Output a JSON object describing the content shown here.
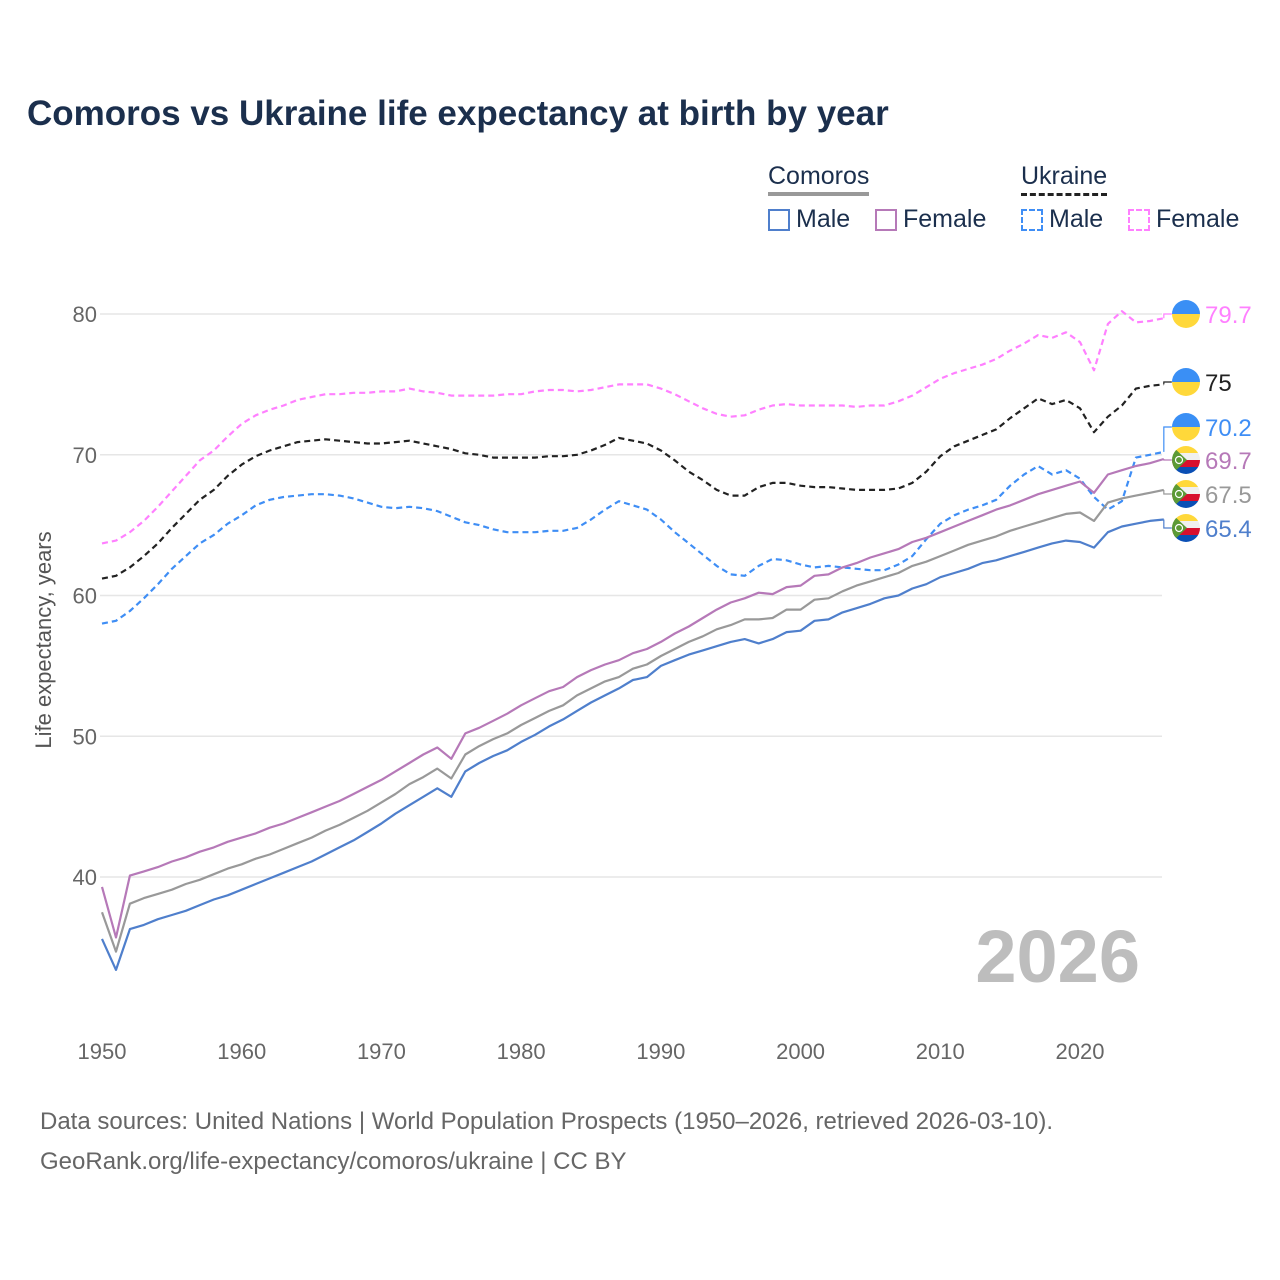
{
  "chart_data": {
    "type": "line",
    "title": "Comoros vs Ukraine life expectancy at birth by year",
    "ylabel": "Life expectancy, years",
    "xlabel": "",
    "xlim": [
      1950,
      2026
    ],
    "ylim": [
      30.5,
      83
    ],
    "x_ticks": [
      "1950",
      "1960",
      "1970",
      "1980",
      "1990",
      "2000",
      "2010",
      "2020"
    ],
    "y_ticks": [
      "40",
      "50",
      "60",
      "70",
      "80"
    ],
    "grid": "horizontal",
    "current_year_label": "2026",
    "legend": {
      "groups": [
        {
          "name": "Comoros",
          "items": [
            "Male",
            "Female"
          ]
        },
        {
          "name": "Ukraine",
          "items": [
            "Male",
            "Female"
          ]
        }
      ],
      "placement": "top-right"
    },
    "x_start": 1950,
    "series": [
      {
        "name": "Ukraine Female",
        "country": "Ukraine",
        "color": "#ff80ff",
        "dashed": true,
        "end_label": "79.7",
        "values": [
          63.7,
          63.9,
          64.5,
          65.3,
          66.3,
          67.4,
          68.5,
          69.6,
          70.3,
          71.3,
          72.2,
          72.8,
          73.2,
          73.5,
          73.9,
          74.1,
          74.3,
          74.3,
          74.4,
          74.4,
          74.5,
          74.5,
          74.7,
          74.5,
          74.4,
          74.2,
          74.2,
          74.2,
          74.2,
          74.3,
          74.3,
          74.5,
          74.6,
          74.6,
          74.5,
          74.6,
          74.8,
          75.0,
          75.0,
          75.0,
          74.7,
          74.3,
          73.8,
          73.3,
          72.9,
          72.7,
          72.8,
          73.2,
          73.5,
          73.6,
          73.5,
          73.5,
          73.5,
          73.5,
          73.4,
          73.5,
          73.5,
          73.8,
          74.2,
          74.8,
          75.4,
          75.8,
          76.1,
          76.4,
          76.8,
          77.4,
          77.9,
          78.5,
          78.3,
          78.7,
          78.0,
          76.0,
          79.3,
          80.2,
          79.4,
          79.5,
          79.7
        ]
      },
      {
        "name": "Ukraine Total",
        "country": "Ukraine",
        "color": "#222222",
        "dashed": true,
        "end_label": "75",
        "values": [
          61.2,
          61.4,
          62.0,
          62.8,
          63.7,
          64.8,
          65.8,
          66.8,
          67.5,
          68.5,
          69.3,
          69.9,
          70.3,
          70.6,
          70.9,
          71.0,
          71.1,
          71.0,
          70.9,
          70.8,
          70.8,
          70.9,
          71.0,
          70.8,
          70.6,
          70.4,
          70.1,
          70.0,
          69.8,
          69.8,
          69.8,
          69.8,
          69.9,
          69.9,
          70.0,
          70.3,
          70.7,
          71.2,
          71.0,
          70.8,
          70.3,
          69.6,
          68.8,
          68.2,
          67.5,
          67.1,
          67.1,
          67.7,
          68.0,
          68.0,
          67.8,
          67.7,
          67.7,
          67.6,
          67.5,
          67.5,
          67.5,
          67.6,
          68.0,
          68.8,
          69.9,
          70.6,
          71.0,
          71.4,
          71.8,
          72.6,
          73.3,
          74.0,
          73.6,
          73.9,
          73.3,
          71.6,
          72.7,
          73.5,
          74.7,
          74.9,
          75.0
        ]
      },
      {
        "name": "Ukraine Male",
        "country": "Ukraine",
        "color": "#3f8ef5",
        "dashed": true,
        "end_label": "70.2",
        "values": [
          58.0,
          58.2,
          58.9,
          59.8,
          60.8,
          61.9,
          62.8,
          63.7,
          64.3,
          65.1,
          65.7,
          66.4,
          66.8,
          67.0,
          67.1,
          67.2,
          67.2,
          67.1,
          66.9,
          66.6,
          66.3,
          66.2,
          66.3,
          66.2,
          66.0,
          65.6,
          65.2,
          65.0,
          64.7,
          64.5,
          64.5,
          64.5,
          64.6,
          64.6,
          64.8,
          65.4,
          66.1,
          66.7,
          66.4,
          66.1,
          65.4,
          64.5,
          63.7,
          62.9,
          62.1,
          61.5,
          61.4,
          62.1,
          62.6,
          62.5,
          62.2,
          62.0,
          62.1,
          62.0,
          61.9,
          61.8,
          61.8,
          62.2,
          62.8,
          64.0,
          65.1,
          65.7,
          66.1,
          66.4,
          66.8,
          67.8,
          68.6,
          69.2,
          68.6,
          68.9,
          68.3,
          67.0,
          66.1,
          66.7,
          69.8,
          70.0,
          70.2
        ]
      },
      {
        "name": "Comoros Female",
        "country": "Comoros",
        "color": "#b679b8",
        "dashed": false,
        "end_label": "69.7",
        "values": [
          39.3,
          35.7,
          40.1,
          40.4,
          40.7,
          41.1,
          41.4,
          41.8,
          42.1,
          42.5,
          42.8,
          43.1,
          43.5,
          43.8,
          44.2,
          44.6,
          45.0,
          45.4,
          45.9,
          46.4,
          46.9,
          47.5,
          48.1,
          48.7,
          49.2,
          48.4,
          50.2,
          50.6,
          51.1,
          51.6,
          52.2,
          52.7,
          53.2,
          53.5,
          54.2,
          54.7,
          55.1,
          55.4,
          55.9,
          56.2,
          56.7,
          57.3,
          57.8,
          58.4,
          59.0,
          59.5,
          59.8,
          60.2,
          60.1,
          60.6,
          60.7,
          61.4,
          61.5,
          62.0,
          62.3,
          62.7,
          63.0,
          63.3,
          63.8,
          64.1,
          64.5,
          64.9,
          65.3,
          65.7,
          66.1,
          66.4,
          66.8,
          67.2,
          67.5,
          67.8,
          68.1,
          67.3,
          68.6,
          68.9,
          69.2,
          69.4,
          69.7
        ]
      },
      {
        "name": "Comoros Total",
        "country": "Comoros",
        "color": "#999999",
        "dashed": false,
        "end_label": "67.5",
        "values": [
          37.5,
          34.7,
          38.1,
          38.5,
          38.8,
          39.1,
          39.5,
          39.8,
          40.2,
          40.6,
          40.9,
          41.3,
          41.6,
          42.0,
          42.4,
          42.8,
          43.3,
          43.7,
          44.2,
          44.7,
          45.3,
          45.9,
          46.6,
          47.1,
          47.7,
          47.0,
          48.7,
          49.3,
          49.8,
          50.2,
          50.8,
          51.3,
          51.8,
          52.2,
          52.9,
          53.4,
          53.9,
          54.2,
          54.8,
          55.1,
          55.7,
          56.2,
          56.7,
          57.1,
          57.6,
          57.9,
          58.3,
          58.3,
          58.4,
          59.0,
          59.0,
          59.7,
          59.8,
          60.3,
          60.7,
          61.0,
          61.3,
          61.6,
          62.1,
          62.4,
          62.8,
          63.2,
          63.6,
          63.9,
          64.2,
          64.6,
          64.9,
          65.2,
          65.5,
          65.8,
          65.9,
          65.3,
          66.6,
          66.9,
          67.1,
          67.3,
          67.5
        ]
      },
      {
        "name": "Comoros Male",
        "country": "Comoros",
        "color": "#4f7fcc",
        "dashed": false,
        "end_label": "65.4",
        "values": [
          35.6,
          33.4,
          36.3,
          36.6,
          37.0,
          37.3,
          37.6,
          38.0,
          38.4,
          38.7,
          39.1,
          39.5,
          39.9,
          40.3,
          40.7,
          41.1,
          41.6,
          42.1,
          42.6,
          43.2,
          43.8,
          44.5,
          45.1,
          45.7,
          46.3,
          45.7,
          47.5,
          48.1,
          48.6,
          49.0,
          49.6,
          50.1,
          50.7,
          51.2,
          51.8,
          52.4,
          52.9,
          53.4,
          54.0,
          54.2,
          55.0,
          55.4,
          55.8,
          56.1,
          56.4,
          56.7,
          56.9,
          56.6,
          56.9,
          57.4,
          57.5,
          58.2,
          58.3,
          58.8,
          59.1,
          59.4,
          59.8,
          60.0,
          60.5,
          60.8,
          61.3,
          61.6,
          61.9,
          62.3,
          62.5,
          62.8,
          63.1,
          63.4,
          63.7,
          63.9,
          63.8,
          63.4,
          64.5,
          64.9,
          65.1,
          65.3,
          65.4
        ]
      }
    ]
  },
  "legend": {
    "comoros": "Comoros",
    "ukraine": "Ukraine",
    "comoros_male": "Male",
    "comoros_female": "Female",
    "ukraine_male": "Male",
    "ukraine_female": "Female"
  },
  "footer": {
    "line1": "Data sources: United Nations | World Population Prospects (1950–2026, retrieved 2026-03-10).",
    "line2": "GeoRank.org/life-expectancy/comoros/ukraine | CC BY"
  }
}
